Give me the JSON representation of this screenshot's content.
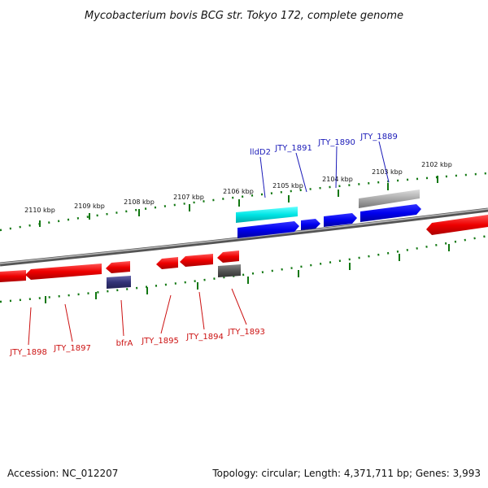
{
  "title": "Mycobacterium bovis BCG str. Tokyo 172, complete genome",
  "footer": {
    "accession": "Accession: NC_012207",
    "topology": "Topology: circular; Length: 4,371,711 bp; Genes: 3,993"
  },
  "ticks": [
    "2110 kbp",
    "2109 kbp",
    "2108 kbp",
    "2107 kbp",
    "2106 kbp",
    "2105 kbp",
    "2104 kbp",
    "2103 kbp",
    "2102 kbp"
  ],
  "genes_forward": [
    "lldD2",
    "JTY_1891",
    "JTY_1890",
    "JTY_1889"
  ],
  "genes_reverse": [
    "JTY_1898",
    "JTY_1897",
    "bfrA",
    "JTY_1895",
    "JTY_1894",
    "JTY_1893"
  ],
  "colors": {
    "forward_cds": "#0000ee",
    "reverse_cds": "#ee0000",
    "rna": "#00e5e5",
    "pseudo": "#888888",
    "reverse_other": "#333377",
    "tick": "#117711",
    "label_forward": "#1a1ab8",
    "label_reverse": "#cc1111"
  }
}
